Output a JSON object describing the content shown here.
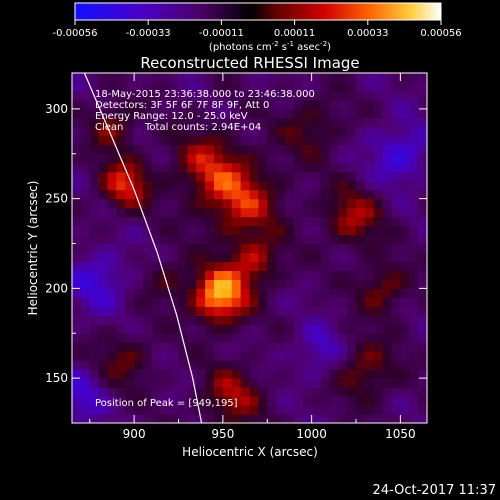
{
  "colorbar": {
    "ticks": [
      "-0.00056",
      "-0.00033",
      "-0.00011",
      "0.00011",
      "0.00033",
      "0.00056"
    ],
    "units_prefix": "(photons cm",
    "units_exp1": "-2",
    "units_mid1": " s",
    "units_exp2": "-1",
    "units_mid2": " asec",
    "units_exp3": "-2",
    "units_suffix": ")",
    "colors": [
      "#0000ff",
      "#3a00c0",
      "#5a0070",
      "#000000",
      "#700000",
      "#c00000",
      "#ff4000",
      "#ffa000",
      "#ffff80",
      "#ffffff"
    ]
  },
  "chart_data": {
    "type": "heatmap",
    "title": "Reconstructed RHESSI Image",
    "xlabel": "Heliocentric X (arcsec)",
    "ylabel": "Heliocentric Y (arcsec)",
    "xlim": [
      865,
      1065
    ],
    "ylim": [
      125,
      320
    ],
    "xticks": [
      900,
      950,
      1000,
      1050
    ],
    "yticks": [
      150,
      200,
      250,
      300
    ],
    "annotations": {
      "time_range": "18-May-2015 23:36:38.000 to 23:46:38.000",
      "detectors": "Detectors: 3F 5F 6F 7F 8F 9F, Att 0",
      "energy": "Energy Range: 12.0 - 25.0 keV",
      "clean_label": "Clean",
      "total_counts": "Total counts: 2.94E+04",
      "peak_label": "Position of Peak = [949,195]"
    },
    "peak": {
      "x": 949,
      "y": 195
    },
    "limb_points": [
      [
        872,
        320
      ],
      [
        885,
        290
      ],
      [
        900,
        255
      ],
      [
        913,
        220
      ],
      [
        924,
        185
      ],
      [
        933,
        150
      ],
      [
        938,
        125
      ]
    ],
    "sources": [
      {
        "x": 948,
        "y": 196,
        "amp": 1.0,
        "sigma": 11
      },
      {
        "x": 960,
        "y": 250,
        "amp": 0.6,
        "sigma": 16
      },
      {
        "x": 940,
        "y": 270,
        "amp": 0.45,
        "sigma": 14
      },
      {
        "x": 968,
        "y": 215,
        "amp": 0.5,
        "sigma": 10
      },
      {
        "x": 895,
        "y": 258,
        "amp": 0.65,
        "sigma": 10
      },
      {
        "x": 888,
        "y": 290,
        "amp": 0.45,
        "sigma": 9
      },
      {
        "x": 1023,
        "y": 240,
        "amp": 0.5,
        "sigma": 12
      },
      {
        "x": 1040,
        "y": 200,
        "amp": 0.45,
        "sigma": 10
      },
      {
        "x": 1030,
        "y": 155,
        "amp": 0.45,
        "sigma": 12
      },
      {
        "x": 955,
        "y": 140,
        "amp": 0.5,
        "sigma": 12
      },
      {
        "x": 895,
        "y": 160,
        "amp": 0.35,
        "sigma": 11
      },
      {
        "x": 1000,
        "y": 290,
        "amp": 0.35,
        "sigma": 12
      },
      {
        "x": 918,
        "y": 205,
        "amp": 0.3,
        "sigma": 9
      },
      {
        "x": 1050,
        "y": 275,
        "amp": -0.45,
        "sigma": 12
      },
      {
        "x": 880,
        "y": 205,
        "amp": -0.4,
        "sigma": 12
      },
      {
        "x": 1005,
        "y": 165,
        "amp": -0.35,
        "sigma": 10
      },
      {
        "x": 870,
        "y": 140,
        "amp": -0.35,
        "sigma": 10
      }
    ]
  },
  "footer": {
    "timestamp": "24-Oct-2017 11:37"
  }
}
